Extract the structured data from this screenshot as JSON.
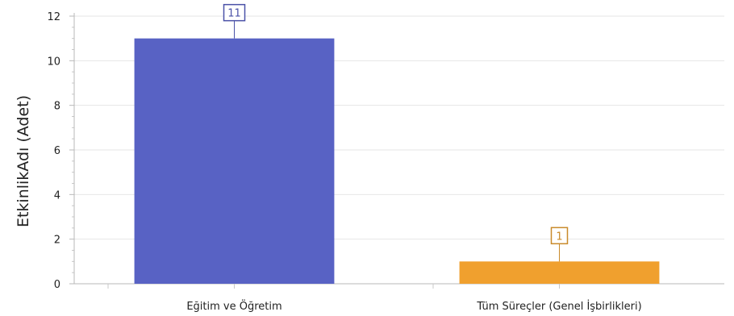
{
  "chart_data": {
    "type": "bar",
    "categories": [
      "Eğitim ve Öğretim",
      "Tüm Süreçler (Genel İşbirlikleri)"
    ],
    "values": [
      11,
      1
    ],
    "colors": [
      "#5862c4",
      "#f0a02e"
    ],
    "label_colors": [
      "#4b52a8",
      "#c98a2a"
    ],
    "data_labels": [
      "11",
      "1"
    ],
    "title": "",
    "xlabel": "",
    "ylabel": "EtkinlikAdı (Adet)",
    "ylim": [
      0,
      12
    ],
    "yticks": [
      0,
      2,
      4,
      6,
      8,
      10,
      12
    ],
    "grid": true,
    "legend": "none"
  }
}
